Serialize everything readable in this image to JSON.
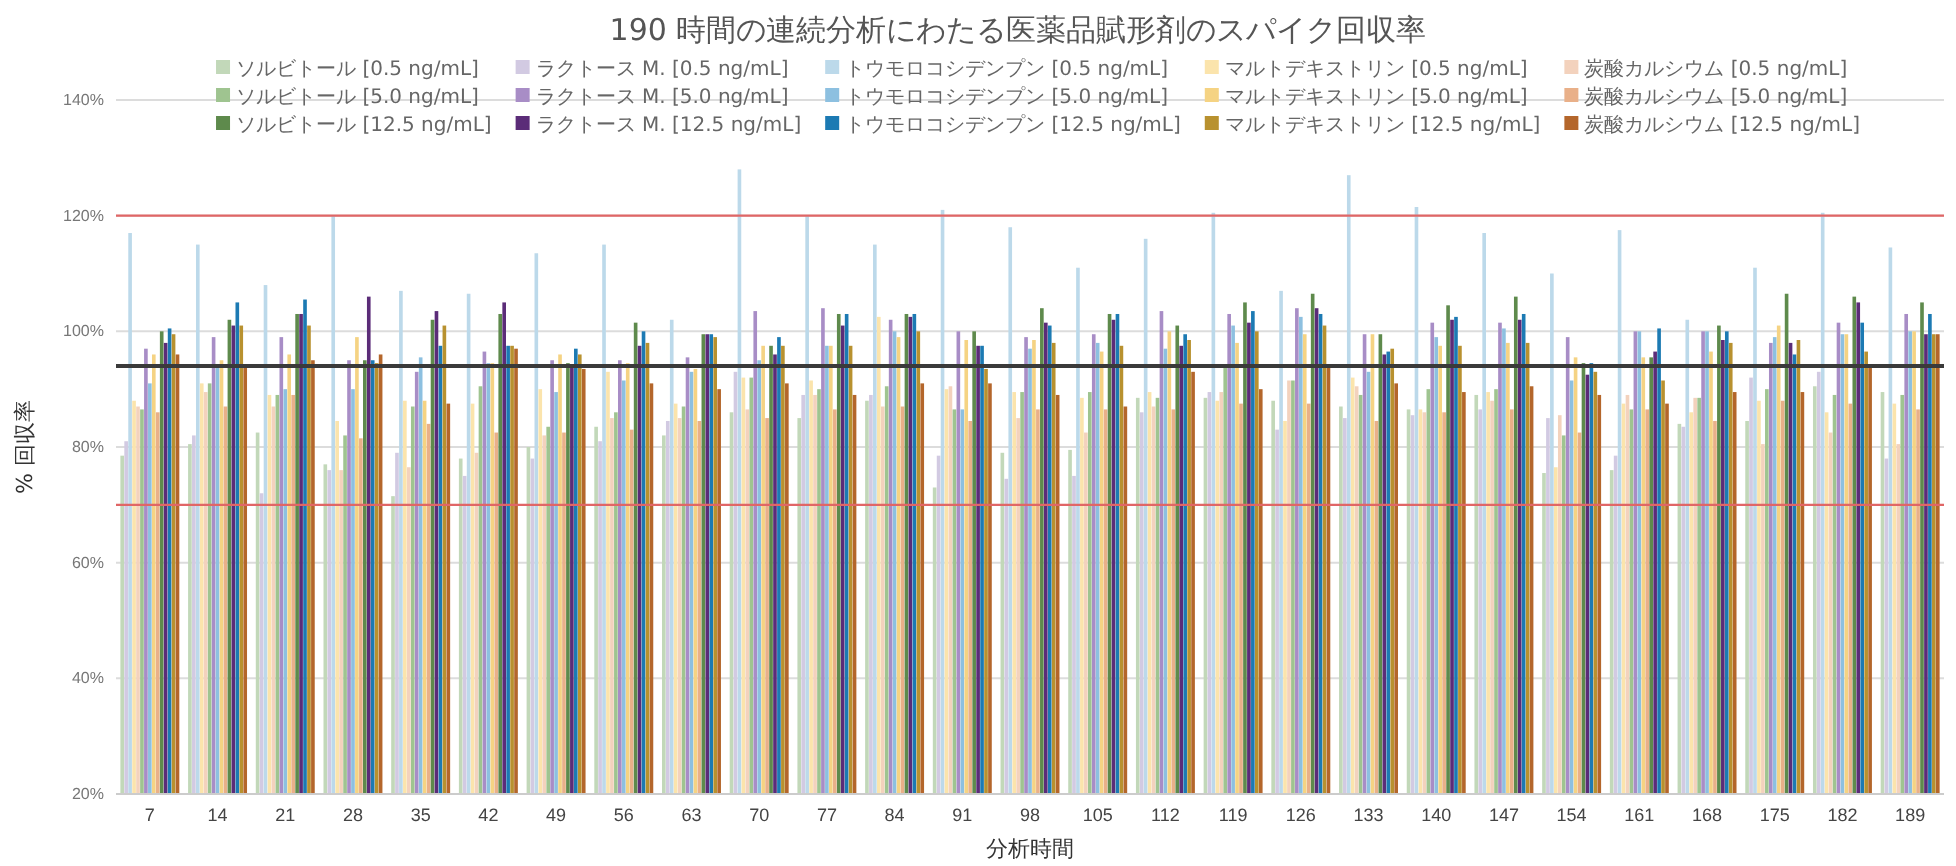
{
  "chart_data": {
    "type": "bar",
    "title": "190 時間の連続分析にわたる医薬品賦形剤のスパイク回収率",
    "xlabel": "分析時間",
    "ylabel": "% 回収率",
    "categories": [
      "7",
      "14",
      "21",
      "28",
      "35",
      "42",
      "49",
      "56",
      "63",
      "70",
      "77",
      "84",
      "91",
      "98",
      "105",
      "112",
      "119",
      "126",
      "133",
      "140",
      "147",
      "154",
      "161",
      "168",
      "175",
      "182",
      "189"
    ],
    "ylim": [
      20,
      140
    ],
    "yticks": [
      {
        "value": 20,
        "label": "20%"
      },
      {
        "value": 40,
        "label": "40%"
      },
      {
        "value": 60,
        "label": "60%"
      },
      {
        "value": 80,
        "label": "80%"
      },
      {
        "value": 100,
        "label": "100%"
      },
      {
        "value": 120,
        "label": "120%"
      },
      {
        "value": 140,
        "label": "140%"
      }
    ],
    "grid": "y",
    "legend": "top",
    "ref_lines": [
      {
        "axis": "y",
        "value": 70,
        "color": "#e06666"
      },
      {
        "axis": "y",
        "value": 120,
        "color": "#e06666"
      },
      {
        "axis": "y",
        "value": 94,
        "color": "#3a3a3a"
      }
    ],
    "series": [
      {
        "name": "ソルビトール [0.5 ng/mL]",
        "color": "#c2d8b9",
        "values": [
          78.5,
          80.5,
          82.5,
          77,
          71.5,
          78,
          80,
          83.5,
          82,
          86,
          85,
          88,
          73,
          79,
          79.5,
          88.5,
          88.5,
          88,
          87,
          86.5,
          89,
          75.5,
          76,
          84,
          84.5,
          90.5,
          89.5
        ]
      },
      {
        "name": "ラクトース M. [0.5 ng/mL]",
        "color": "#d2cae2",
        "values": [
          81,
          82,
          72,
          76,
          79,
          75,
          78,
          81,
          84.5,
          93,
          89,
          89,
          78.5,
          74.5,
          75,
          86,
          89.5,
          83,
          85,
          85.5,
          86.5,
          85,
          78.5,
          83.5,
          92,
          93,
          78
        ]
      },
      {
        "name": "トウモロコシデンプン [0.5 ng/mL]",
        "color": "#bcd9ea",
        "values": [
          117,
          115,
          108,
          120,
          107,
          106.5,
          113.5,
          115,
          102,
          128,
          120,
          115,
          121,
          118,
          111,
          116,
          120.5,
          107,
          127,
          121.5,
          117,
          110,
          117.5,
          102,
          111,
          120.5,
          114.5
        ]
      },
      {
        "name": "マルトデキストリン [0.5 ng/mL]",
        "color": "#fbe4ac",
        "values": [
          88,
          91,
          89,
          84.5,
          88,
          87.5,
          90,
          93,
          87.5,
          92,
          91.5,
          102.5,
          90,
          89.5,
          88.5,
          89.5,
          88,
          84.5,
          92,
          86.5,
          89.5,
          76.5,
          87.5,
          86,
          88,
          86,
          87.5
        ]
      },
      {
        "name": "炭酸カルシウム [0.5 ng/mL]",
        "color": "#f3d2bd",
        "values": [
          87,
          89.5,
          87,
          76,
          76.5,
          79,
          82,
          85,
          85,
          86.5,
          89,
          87,
          90.5,
          85,
          82.5,
          87,
          89.5,
          91.5,
          90.5,
          86,
          88,
          85.5,
          89,
          88.5,
          80.5,
          82.5,
          80.5
        ]
      },
      {
        "name": "ソルビトール [5.0 ng/mL]",
        "color": "#9fc490",
        "values": [
          86.5,
          91,
          89,
          82,
          87,
          90.5,
          83.5,
          86,
          87,
          92,
          90,
          90.5,
          86.5,
          89.5,
          89.5,
          88.5,
          94,
          91.5,
          89,
          90,
          90,
          82,
          86.5,
          88.5,
          90,
          89,
          89
        ]
      },
      {
        "name": "ラクトース M. [5.0 ng/mL]",
        "color": "#a88dc6",
        "values": [
          97,
          99,
          99,
          95,
          93,
          96.5,
          95,
          95,
          95.5,
          103.5,
          104,
          102,
          100,
          99,
          99.5,
          103.5,
          103,
          104,
          99.5,
          101.5,
          101.5,
          99,
          100,
          100,
          98,
          101.5,
          103
        ]
      },
      {
        "name": "トウモロコシデンプン [5.0 ng/mL]",
        "color": "#8dc0e0",
        "values": [
          91,
          94,
          90,
          90,
          95.5,
          94.5,
          89.5,
          91.5,
          93,
          95,
          97.5,
          100,
          86.5,
          97,
          98,
          97,
          101,
          102.5,
          93,
          99,
          100.5,
          91.5,
          100,
          100,
          99,
          99.5,
          100
        ]
      },
      {
        "name": "マルトデキストリン [5.0 ng/mL]",
        "color": "#f5d383",
        "values": [
          96,
          95,
          96,
          99,
          88,
          94.5,
          96,
          94.5,
          93.5,
          97.5,
          97.5,
          99,
          98.5,
          98.5,
          96.5,
          100,
          98,
          99.5,
          99.5,
          97.5,
          98,
          95.5,
          95.5,
          96.5,
          101,
          99.5,
          100
        ]
      },
      {
        "name": "炭酸カルシウム [5.0 ng/mL]",
        "color": "#e9b089",
        "values": [
          86,
          87,
          89,
          81.5,
          84,
          82.5,
          82.5,
          83,
          84.5,
          85,
          86.5,
          87,
          84.5,
          86.5,
          86.5,
          86.5,
          87.5,
          87.5,
          84.5,
          86,
          86.5,
          82.5,
          86.5,
          84.5,
          88,
          87.5,
          86.5
        ]
      },
      {
        "name": "ソルビトール [12.5 ng/mL]",
        "color": "#5e8a4c",
        "values": [
          100,
          102,
          103,
          95,
          102,
          103,
          94.5,
          101.5,
          99.5,
          97.5,
          103,
          103,
          100,
          104,
          103,
          101,
          105,
          106.5,
          99.5,
          104.5,
          106,
          94.5,
          95.5,
          101,
          106.5,
          106,
          105
        ]
      },
      {
        "name": "ラクトース M. [12.5 ng/mL]",
        "color": "#5b2c78",
        "values": [
          98,
          101,
          103,
          106,
          103.5,
          105,
          94,
          97.5,
          99.5,
          96,
          101,
          102.5,
          97.5,
          101.5,
          102,
          97.5,
          101.5,
          104,
          96,
          102,
          102,
          92.5,
          96.5,
          98.5,
          98,
          105,
          99.5
        ]
      },
      {
        "name": "トウモロコシデンプン [12.5 ng/mL]",
        "color": "#1c7ab3",
        "values": [
          100.5,
          105,
          105.5,
          95,
          97.5,
          97.5,
          97,
          100,
          99.5,
          99,
          103,
          103,
          97.5,
          101,
          103,
          99.5,
          103.5,
          103,
          96.5,
          102.5,
          103,
          94.5,
          100.5,
          100,
          96,
          101.5,
          103
        ]
      },
      {
        "name": "マルトデキストリン [12.5 ng/mL]",
        "color": "#b8912f",
        "values": [
          99.5,
          101,
          101,
          94.5,
          101,
          97.5,
          96,
          98,
          99,
          97.5,
          97.5,
          100,
          93.5,
          98,
          97.5,
          98.5,
          100,
          101,
          97,
          97.5,
          98,
          93,
          91.5,
          98,
          98.5,
          96.5,
          99.5
        ]
      },
      {
        "name": "炭酸カルシウム [12.5 ng/mL]",
        "color": "#b4662b",
        "values": [
          96,
          94,
          95,
          96,
          87.5,
          97,
          93.5,
          91,
          90,
          91,
          89,
          91,
          91,
          89,
          87,
          93,
          90,
          94,
          91,
          89.5,
          90.5,
          89,
          87.5,
          89.5,
          89.5,
          94,
          99.5
        ]
      }
    ]
  }
}
